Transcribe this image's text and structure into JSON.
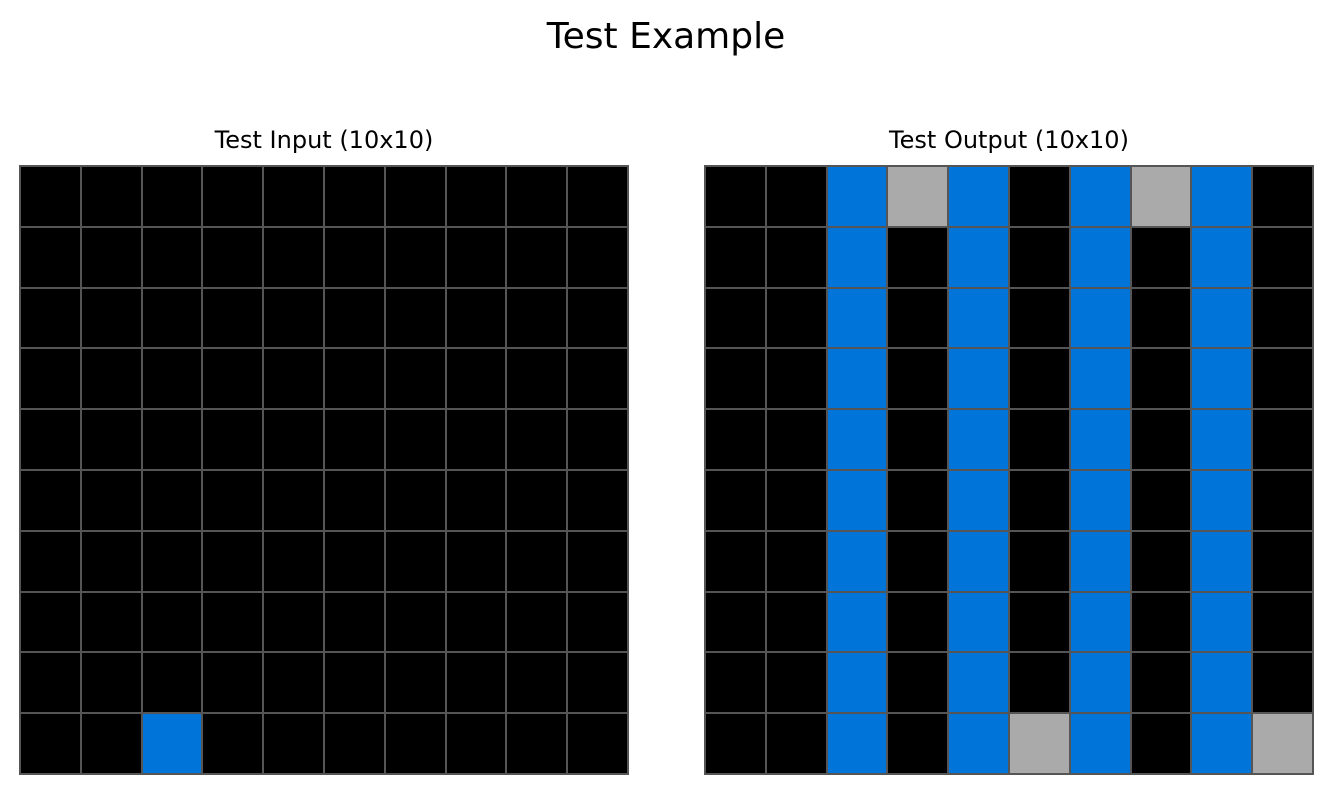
{
  "title": "Test Example",
  "palette": {
    "0": "#000000",
    "1": "#0074D9",
    "5": "#AAAAAA"
  },
  "gridline_color": "#555555",
  "panels": [
    {
      "id": "input",
      "title": "Test Input (10x10)",
      "grid": [
        [
          0,
          0,
          0,
          0,
          0,
          0,
          0,
          0,
          0,
          0
        ],
        [
          0,
          0,
          0,
          0,
          0,
          0,
          0,
          0,
          0,
          0
        ],
        [
          0,
          0,
          0,
          0,
          0,
          0,
          0,
          0,
          0,
          0
        ],
        [
          0,
          0,
          0,
          0,
          0,
          0,
          0,
          0,
          0,
          0
        ],
        [
          0,
          0,
          0,
          0,
          0,
          0,
          0,
          0,
          0,
          0
        ],
        [
          0,
          0,
          0,
          0,
          0,
          0,
          0,
          0,
          0,
          0
        ],
        [
          0,
          0,
          0,
          0,
          0,
          0,
          0,
          0,
          0,
          0
        ],
        [
          0,
          0,
          0,
          0,
          0,
          0,
          0,
          0,
          0,
          0
        ],
        [
          0,
          0,
          0,
          0,
          0,
          0,
          0,
          0,
          0,
          0
        ],
        [
          0,
          0,
          1,
          0,
          0,
          0,
          0,
          0,
          0,
          0
        ]
      ]
    },
    {
      "id": "output",
      "title": "Test Output (10x10)",
      "grid": [
        [
          0,
          0,
          1,
          5,
          1,
          0,
          1,
          5,
          1,
          0
        ],
        [
          0,
          0,
          1,
          0,
          1,
          0,
          1,
          0,
          1,
          0
        ],
        [
          0,
          0,
          1,
          0,
          1,
          0,
          1,
          0,
          1,
          0
        ],
        [
          0,
          0,
          1,
          0,
          1,
          0,
          1,
          0,
          1,
          0
        ],
        [
          0,
          0,
          1,
          0,
          1,
          0,
          1,
          0,
          1,
          0
        ],
        [
          0,
          0,
          1,
          0,
          1,
          0,
          1,
          0,
          1,
          0
        ],
        [
          0,
          0,
          1,
          0,
          1,
          0,
          1,
          0,
          1,
          0
        ],
        [
          0,
          0,
          1,
          0,
          1,
          0,
          1,
          0,
          1,
          0
        ],
        [
          0,
          0,
          1,
          0,
          1,
          0,
          1,
          0,
          1,
          0
        ],
        [
          0,
          0,
          1,
          0,
          1,
          5,
          1,
          0,
          1,
          5
        ]
      ]
    }
  ]
}
